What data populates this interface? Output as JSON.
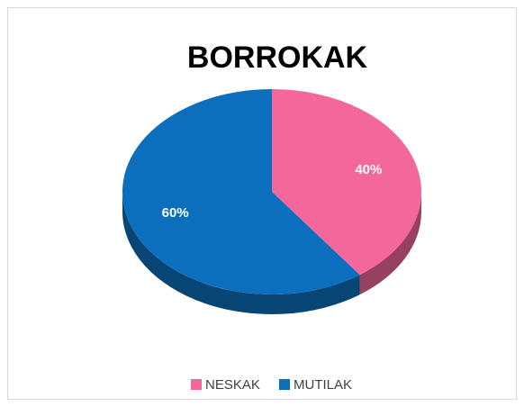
{
  "chart_data": {
    "type": "pie",
    "title": "BORROKAK",
    "categories": [
      "NESKAK",
      "MUTILAK"
    ],
    "values": [
      40,
      60
    ],
    "value_labels": [
      "40%",
      "60%"
    ],
    "colors": [
      "#f4679a",
      "#0b6fbd"
    ],
    "legend": "bottom"
  }
}
